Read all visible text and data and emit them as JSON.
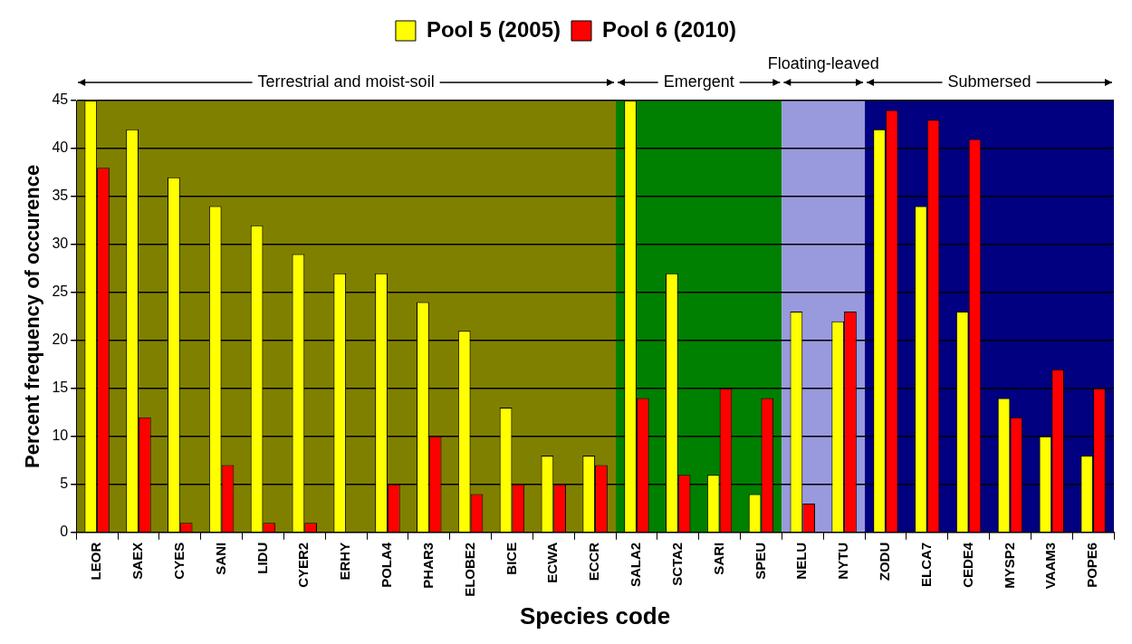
{
  "chart_data": {
    "type": "bar",
    "xlabel": "Species code",
    "ylabel": "Percent frequency of occurence",
    "categories": [
      "LEOR",
      "SAEX",
      "CYES",
      "SANI",
      "LIDU",
      "CYER2",
      "ERHY",
      "POLA4",
      "PHAR3",
      "ELOBE2",
      "BICE",
      "ECWA",
      "ECCR",
      "SALA2",
      "SCTA2",
      "SARI",
      "SPEU",
      "NELU",
      "NYTU",
      "ZODU",
      "ELCA7",
      "CEDE4",
      "MYSP2",
      "VAAM3",
      "POPE6"
    ],
    "series": [
      {
        "name": "Pool 5 (2005)",
        "color": "#ffff00",
        "values": [
          45,
          42,
          37,
          34,
          32,
          29,
          27,
          27,
          24,
          21,
          13,
          8,
          8,
          45,
          27,
          6,
          4,
          23,
          22,
          42,
          34,
          23,
          14,
          10,
          8
        ]
      },
      {
        "name": "Pool 6 (2010)",
        "color": "#ff0000",
        "values": [
          38,
          12,
          1,
          7,
          1,
          1,
          0,
          5,
          10,
          4,
          5,
          5,
          7,
          14,
          6,
          15,
          14,
          3,
          23,
          44,
          43,
          41,
          12,
          17,
          15
        ]
      }
    ],
    "ylim": [
      0,
      45
    ],
    "yticks": [
      0,
      5,
      10,
      15,
      20,
      25,
      30,
      35,
      40,
      45
    ],
    "grid": "y",
    "legend": "top",
    "bands": [
      {
        "axis": "x",
        "from": "LEOR",
        "to": "ECCR",
        "label": "Terrestrial and moist-soil",
        "color": "#808000"
      },
      {
        "axis": "x",
        "from": "SALA2",
        "to": "SPEU",
        "label": "Emergent",
        "color": "#008000"
      },
      {
        "axis": "x",
        "from": "NELU",
        "to": "NYTU",
        "label": "Floating-leaved",
        "color": "#9999dd"
      },
      {
        "axis": "x",
        "from": "ZODU",
        "to": "POPE6",
        "label": "Submersed",
        "color": "#000080"
      }
    ]
  }
}
